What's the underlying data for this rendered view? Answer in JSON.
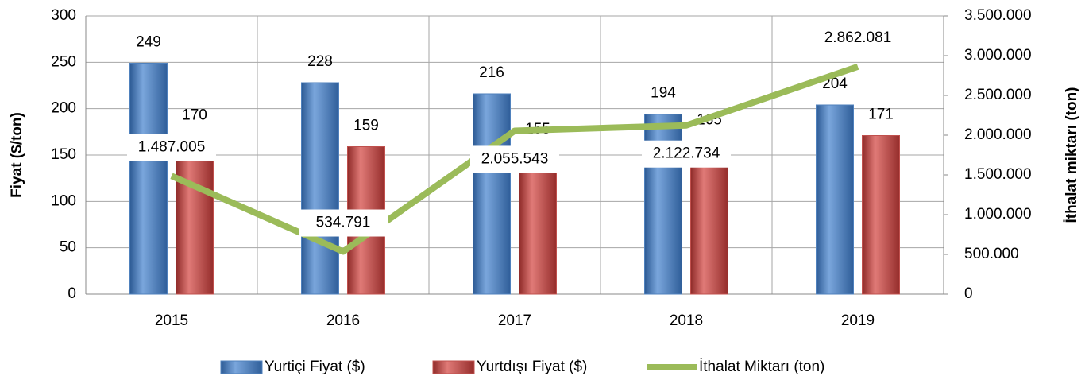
{
  "chart_data": {
    "type": "bar_line",
    "y_label": "Fiyat ($/ton)",
    "y2_label": "İthalat miktarı (ton)",
    "categories": [
      "2015",
      "2016",
      "2017",
      "2018",
      "2019"
    ],
    "series": [
      {
        "name": "Yurtiçi Fiyat ($)",
        "type": "bar",
        "color": "#4f81bd",
        "values": [
          249,
          228,
          216,
          194,
          204
        ]
      },
      {
        "name": "Yurtdışı Fiyat ($)",
        "type": "bar",
        "color": "#c0504d",
        "values": [
          170,
          159,
          155,
          165,
          171
        ]
      },
      {
        "name": "İthalat Miktarı (ton)",
        "type": "line",
        "axis": "y2",
        "color": "#9bbb59",
        "values": [
          1487005,
          534791,
          2055543,
          2122734,
          2862081
        ],
        "value_labels": [
          "1.487.005",
          "534.791",
          "2.055.543",
          "2.122.734",
          "2.862.081"
        ]
      }
    ],
    "ylim": [
      0,
      300
    ],
    "yticks": [
      0,
      50,
      100,
      150,
      200,
      250,
      300
    ],
    "y2lim": [
      0,
      3500000
    ],
    "y2ticks": [
      0,
      {
        "value": 500000,
        "label": "500.000"
      },
      {
        "value": 1000000,
        "label": "1.000.000"
      },
      {
        "value": 1500000,
        "label": "1.500.000"
      },
      {
        "value": 2000000,
        "label": "2.000.000"
      },
      {
        "value": 2500000,
        "label": "2.500.000"
      },
      {
        "value": 3000000,
        "label": "3.000.000"
      },
      {
        "value": 3500000,
        "label": "3.500.000"
      }
    ],
    "grid": true,
    "legend": "bottom"
  }
}
